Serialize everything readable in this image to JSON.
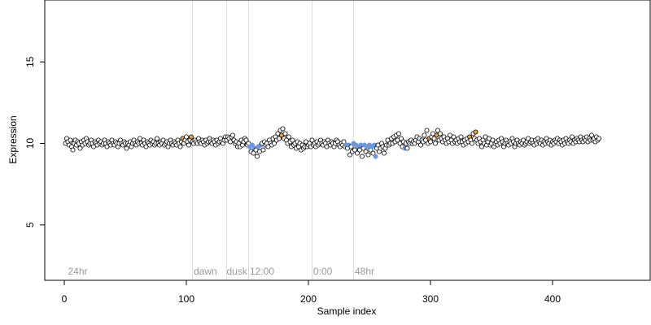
{
  "chart_data": {
    "type": "scatter",
    "xlabel": "Sample index",
    "ylabel": "Expression",
    "xlim": [
      -16,
      480
    ],
    "ylim": [
      1.6,
      18.8
    ],
    "x_ticks": [
      0,
      100,
      200,
      300,
      400
    ],
    "y_ticks": [
      5,
      10,
      15
    ],
    "grid": false,
    "colors": {
      "default": "#ffffff",
      "high": "#f0a040",
      "low": "#6a98e0",
      "vline": "#dddddd",
      "annot": "#9a9a9a"
    },
    "vlines": [
      105,
      133,
      151,
      203,
      237
    ],
    "annotations": [
      {
        "x": 3,
        "label": "24hr"
      },
      {
        "x": 106,
        "label": "dawn"
      },
      {
        "x": 133,
        "label": "dusk"
      },
      {
        "x": 152,
        "label": "12:00"
      },
      {
        "x": 204,
        "label": "0:00"
      },
      {
        "x": 238,
        "label": "48hr"
      }
    ],
    "points": [
      [
        1,
        10.0
      ],
      [
        2,
        10.3
      ],
      [
        3,
        10.1
      ],
      [
        4,
        9.9
      ],
      [
        5,
        10.2
      ],
      [
        6,
        9.8
      ],
      [
        7,
        9.6
      ],
      [
        8,
        10.0
      ],
      [
        9,
        10.2
      ],
      [
        10,
        9.9
      ],
      [
        11,
        10.1
      ],
      [
        12,
        10.0
      ],
      [
        13,
        9.7
      ],
      [
        14,
        10.1
      ],
      [
        15,
        9.9
      ],
      [
        16,
        10.2
      ],
      [
        17,
        10.0
      ],
      [
        18,
        10.3
      ],
      [
        19,
        10.1
      ],
      [
        20,
        9.9
      ],
      [
        21,
        10.0
      ],
      [
        22,
        10.2
      ],
      [
        23,
        10.0
      ],
      [
        24,
        9.8
      ],
      [
        25,
        10.1
      ],
      [
        26,
        10.0
      ],
      [
        27,
        9.9
      ],
      [
        28,
        10.2
      ],
      [
        29,
        10.0
      ],
      [
        30,
        10.1
      ],
      [
        31,
        9.9
      ],
      [
        32,
        10.0
      ],
      [
        33,
        10.2
      ],
      [
        34,
        10.0
      ],
      [
        35,
        9.8
      ],
      [
        36,
        10.1
      ],
      [
        37,
        10.0
      ],
      [
        38,
        9.9
      ],
      [
        39,
        10.2
      ],
      [
        40,
        10.0
      ],
      [
        41,
        9.9
      ],
      [
        42,
        10.1
      ],
      [
        43,
        10.0
      ],
      [
        44,
        9.8
      ],
      [
        45,
        10.0
      ],
      [
        46,
        10.2
      ],
      [
        47,
        10.0
      ],
      [
        48,
        9.9
      ],
      [
        49,
        10.1
      ],
      [
        50,
        10.0
      ],
      [
        51,
        9.7
      ],
      [
        52,
        10.0
      ],
      [
        53,
        9.9
      ],
      [
        54,
        10.1
      ],
      [
        55,
        9.8
      ],
      [
        56,
        10.0
      ],
      [
        57,
        10.2
      ],
      [
        58,
        10.0
      ],
      [
        59,
        9.9
      ],
      [
        60,
        10.1
      ],
      [
        61,
        10.0
      ],
      [
        62,
        10.3
      ],
      [
        63,
        10.0
      ],
      [
        64,
        9.9
      ],
      [
        65,
        10.2
      ],
      [
        66,
        10.0
      ],
      [
        67,
        9.8
      ],
      [
        68,
        10.1
      ],
      [
        69,
        10.0
      ],
      [
        70,
        9.9
      ],
      [
        71,
        10.2
      ],
      [
        72,
        10.0
      ],
      [
        73,
        10.1
      ],
      [
        74,
        9.9
      ],
      [
        75,
        10.0
      ],
      [
        76,
        10.3
      ],
      [
        77,
        10.0
      ],
      [
        78,
        9.9
      ],
      [
        79,
        10.1
      ],
      [
        80,
        10.0
      ],
      [
        81,
        10.2
      ],
      [
        82,
        9.9
      ],
      [
        83,
        10.0
      ],
      [
        84,
        10.1
      ],
      [
        85,
        9.8
      ],
      [
        86,
        10.0
      ],
      [
        87,
        10.2
      ],
      [
        88,
        10.0
      ],
      [
        89,
        9.9
      ],
      [
        90,
        10.1
      ],
      [
        91,
        10.0
      ],
      [
        92,
        9.9
      ],
      [
        93,
        10.2
      ],
      [
        94,
        10.0
      ],
      [
        95,
        9.8
      ],
      [
        96,
        10.1
      ],
      [
        97,
        10.3,
        "h"
      ],
      [
        98,
        10.0
      ],
      [
        99,
        10.2
      ],
      [
        100,
        10.4
      ],
      [
        101,
        10.1
      ],
      [
        102,
        9.9
      ],
      [
        103,
        10.2
      ],
      [
        104,
        10.4,
        "h"
      ],
      [
        105,
        10.1
      ],
      [
        106,
        10.0
      ],
      [
        107,
        10.2
      ],
      [
        108,
        10.1
      ],
      [
        109,
        10.0
      ],
      [
        110,
        10.3
      ],
      [
        111,
        10.1
      ],
      [
        112,
        10.0
      ],
      [
        113,
        10.2
      ],
      [
        114,
        10.1
      ],
      [
        115,
        9.9
      ],
      [
        116,
        10.2
      ],
      [
        117,
        10.0
      ],
      [
        118,
        10.1
      ],
      [
        119,
        10.3
      ],
      [
        120,
        10.1
      ],
      [
        121,
        10.0
      ],
      [
        122,
        10.2
      ],
      [
        123,
        10.1
      ],
      [
        124,
        9.9
      ],
      [
        125,
        10.2
      ],
      [
        126,
        10.0
      ],
      [
        127,
        10.1
      ],
      [
        128,
        10.3
      ],
      [
        129,
        10.1
      ],
      [
        130,
        10.0
      ],
      [
        131,
        10.2
      ],
      [
        132,
        10.4
      ],
      [
        133,
        10.2
      ],
      [
        134,
        10.4
      ],
      [
        135,
        10.3
      ],
      [
        136,
        10.1
      ],
      [
        137,
        10.4
      ],
      [
        138,
        10.5
      ],
      [
        139,
        10.2
      ],
      [
        140,
        10.0
      ],
      [
        141,
        10.1
      ],
      [
        142,
        9.8
      ],
      [
        143,
        10.0
      ],
      [
        144,
        9.8
      ],
      [
        145,
        10.2
      ],
      [
        146,
        9.9
      ],
      [
        147,
        10.1
      ],
      [
        148,
        10.3
      ],
      [
        149,
        10.2
      ],
      [
        150,
        9.9
      ],
      [
        151,
        10.0
      ],
      [
        152,
        9.8,
        "l"
      ],
      [
        153,
        9.5
      ],
      [
        154,
        9.9,
        "l"
      ],
      [
        155,
        9.4
      ],
      [
        156,
        9.7,
        "l"
      ],
      [
        157,
        9.6
      ],
      [
        158,
        9.2
      ],
      [
        159,
        9.8,
        "l"
      ],
      [
        160,
        9.5
      ],
      [
        161,
        9.9,
        "l"
      ],
      [
        162,
        10.0
      ],
      [
        163,
        9.6
      ],
      [
        164,
        10.1
      ],
      [
        165,
        9.9
      ],
      [
        166,
        10.0
      ],
      [
        167,
        9.8
      ],
      [
        168,
        10.2
      ],
      [
        169,
        10.0
      ],
      [
        170,
        9.9
      ],
      [
        171,
        10.3
      ],
      [
        172,
        10.0
      ],
      [
        173,
        10.4
      ],
      [
        174,
        10.2
      ],
      [
        175,
        10.6
      ],
      [
        176,
        10.3
      ],
      [
        177,
        10.8
      ],
      [
        178,
        10.5,
        "h"
      ],
      [
        179,
        10.9
      ],
      [
        180,
        10.3
      ],
      [
        181,
        10.6
      ],
      [
        182,
        10.2
      ],
      [
        183,
        10.0
      ],
      [
        184,
        10.4
      ],
      [
        185,
        10.1
      ],
      [
        186,
        9.8
      ],
      [
        187,
        10.2
      ],
      [
        188,
        9.9
      ],
      [
        189,
        10.0
      ],
      [
        190,
        9.7
      ],
      [
        191,
        10.1
      ],
      [
        192,
        9.8
      ],
      [
        193,
        10.0
      ],
      [
        194,
        9.6
      ],
      [
        195,
        9.9
      ],
      [
        196,
        9.7
      ],
      [
        197,
        9.8
      ],
      [
        198,
        10.1
      ],
      [
        199,
        9.8
      ],
      [
        200,
        9.9
      ],
      [
        201,
        10.0
      ],
      [
        202,
        9.8
      ],
      [
        203,
        10.2
      ],
      [
        204,
        9.9
      ],
      [
        205,
        10.0
      ],
      [
        206,
        9.8
      ],
      [
        207,
        10.1
      ],
      [
        208,
        9.9
      ],
      [
        209,
        10.0
      ],
      [
        210,
        10.2
      ],
      [
        211,
        10.0
      ],
      [
        212,
        9.9
      ],
      [
        213,
        10.1
      ],
      [
        214,
        10.0
      ],
      [
        215,
        9.8
      ],
      [
        216,
        10.2
      ],
      [
        217,
        10.0
      ],
      [
        218,
        9.9
      ],
      [
        219,
        10.1
      ],
      [
        220,
        10.0
      ],
      [
        221,
        9.8
      ],
      [
        222,
        10.0
      ],
      [
        223,
        10.2
      ],
      [
        224,
        10.1
      ],
      [
        225,
        9.9
      ],
      [
        226,
        9.8
      ],
      [
        227,
        10.0
      ],
      [
        228,
        9.9
      ],
      [
        229,
        10.1
      ],
      [
        230,
        9.8
      ],
      [
        231,
        9.9,
        "l"
      ],
      [
        232,
        9.7
      ],
      [
        233,
        9.9,
        "l"
      ],
      [
        234,
        9.3
      ],
      [
        235,
        9.8
      ],
      [
        236,
        9.5
      ],
      [
        237,
        10.0,
        "l"
      ],
      [
        238,
        9.6
      ],
      [
        239,
        9.9,
        "l"
      ],
      [
        240,
        9.4
      ],
      [
        241,
        9.8,
        "l"
      ],
      [
        242,
        9.6
      ],
      [
        243,
        9.9,
        "l"
      ],
      [
        244,
        9.2
      ],
      [
        245,
        9.7
      ],
      [
        246,
        9.9,
        "l"
      ],
      [
        247,
        9.5
      ],
      [
        248,
        9.8,
        "l"
      ],
      [
        249,
        9.3
      ],
      [
        250,
        9.9,
        "l"
      ],
      [
        251,
        9.6
      ],
      [
        252,
        9.8,
        "l"
      ],
      [
        253,
        9.4
      ],
      [
        254,
        9.9,
        "l"
      ],
      [
        255,
        9.2,
        "l"
      ],
      [
        256,
        9.7
      ],
      [
        257,
        9.9
      ],
      [
        258,
        9.5
      ],
      [
        259,
        9.7
      ],
      [
        260,
        10.0
      ],
      [
        261,
        9.8
      ],
      [
        262,
        9.4
      ],
      [
        263,
        9.7
      ],
      [
        264,
        9.9
      ],
      [
        265,
        10.2
      ],
      [
        266,
        9.9
      ],
      [
        267,
        10.0
      ],
      [
        268,
        10.3
      ],
      [
        269,
        10.0
      ],
      [
        270,
        10.4
      ],
      [
        271,
        10.1
      ],
      [
        272,
        10.5
      ],
      [
        273,
        10.2
      ],
      [
        274,
        10.6
      ],
      [
        275,
        10.0
      ],
      [
        276,
        10.3
      ],
      [
        277,
        9.8
      ],
      [
        278,
        10.1
      ],
      [
        279,
        9.7,
        "l"
      ],
      [
        280,
        10.0
      ],
      [
        281,
        9.7
      ],
      [
        282,
        10.1
      ],
      [
        283,
        10.0
      ],
      [
        284,
        10.2
      ],
      [
        285,
        10.0
      ],
      [
        286,
        10.1
      ],
      [
        287,
        10.0
      ],
      [
        288,
        10.2
      ],
      [
        289,
        10.4
      ],
      [
        290,
        10.1
      ],
      [
        291,
        10.3
      ],
      [
        292,
        9.9
      ],
      [
        293,
        10.2
      ],
      [
        294,
        10.1
      ],
      [
        295,
        10.5
      ],
      [
        296,
        10.2
      ],
      [
        297,
        10.8
      ],
      [
        298,
        10.0
      ],
      [
        299,
        10.3,
        "h"
      ],
      [
        300,
        10.1
      ],
      [
        301,
        10.4
      ],
      [
        302,
        10.6
      ],
      [
        303,
        10.3
      ],
      [
        304,
        10.0
      ],
      [
        305,
        10.5,
        "h"
      ],
      [
        306,
        10.8
      ],
      [
        307,
        10.2
      ],
      [
        308,
        10.6
      ],
      [
        309,
        10.3
      ],
      [
        310,
        10.1
      ],
      [
        311,
        10.4
      ],
      [
        312,
        10.2
      ],
      [
        313,
        10.0
      ],
      [
        314,
        10.3
      ],
      [
        315,
        10.1
      ],
      [
        316,
        10.5
      ],
      [
        317,
        10.2
      ],
      [
        318,
        10.0
      ],
      [
        319,
        10.4
      ],
      [
        320,
        10.1
      ],
      [
        321,
        10.2
      ],
      [
        322,
        10.0
      ],
      [
        323,
        10.3
      ],
      [
        324,
        10.1
      ],
      [
        325,
        10.4
      ],
      [
        326,
        10.1
      ],
      [
        327,
        9.9
      ],
      [
        328,
        10.2
      ],
      [
        329,
        10.0
      ],
      [
        330,
        10.3
      ],
      [
        331,
        10.1
      ],
      [
        332,
        10.4,
        "h"
      ],
      [
        333,
        10.2
      ],
      [
        334,
        10.0
      ],
      [
        335,
        10.6
      ],
      [
        336,
        10.3
      ],
      [
        337,
        10.7,
        "h"
      ],
      [
        338,
        10.2
      ],
      [
        339,
        10.0
      ],
      [
        340,
        10.3
      ],
      [
        341,
        10.1
      ],
      [
        342,
        9.8
      ],
      [
        343,
        10.2
      ],
      [
        344,
        10.0
      ],
      [
        345,
        10.4
      ],
      [
        346,
        9.9
      ],
      [
        347,
        10.1
      ],
      [
        348,
        10.3
      ],
      [
        349,
        9.9
      ],
      [
        350,
        10.0
      ],
      [
        351,
        10.2
      ],
      [
        352,
        9.8
      ],
      [
        353,
        10.0
      ],
      [
        354,
        10.1
      ],
      [
        355,
        9.9
      ],
      [
        356,
        10.2
      ],
      [
        357,
        10.0
      ],
      [
        358,
        10.3
      ],
      [
        359,
        10.1
      ],
      [
        360,
        9.8
      ],
      [
        361,
        10.0
      ],
      [
        362,
        10.2
      ],
      [
        363,
        10.0
      ],
      [
        364,
        9.9
      ],
      [
        365,
        10.1
      ],
      [
        366,
        10.0
      ],
      [
        367,
        10.3
      ],
      [
        368,
        10.1
      ],
      [
        369,
        9.8
      ],
      [
        370,
        10.0
      ],
      [
        371,
        10.2
      ],
      [
        372,
        10.0
      ],
      [
        373,
        9.9
      ],
      [
        374,
        10.1
      ],
      [
        375,
        10.0
      ],
      [
        376,
        10.2
      ],
      [
        377,
        9.9
      ],
      [
        378,
        10.0
      ],
      [
        379,
        10.1
      ],
      [
        380,
        10.3
      ],
      [
        381,
        10.0
      ],
      [
        382,
        10.1
      ],
      [
        383,
        10.2
      ],
      [
        384,
        10.0
      ],
      [
        385,
        9.9
      ],
      [
        386,
        10.2
      ],
      [
        387,
        10.0
      ],
      [
        388,
        10.3
      ],
      [
        389,
        10.1
      ],
      [
        390,
        10.0
      ],
      [
        391,
        10.2
      ],
      [
        392,
        9.9
      ],
      [
        393,
        10.1
      ],
      [
        394,
        10.0
      ],
      [
        395,
        10.3
      ],
      [
        396,
        10.1
      ],
      [
        397,
        10.0
      ],
      [
        398,
        10.2
      ],
      [
        399,
        9.9
      ],
      [
        400,
        10.1
      ],
      [
        401,
        10.0
      ],
      [
        402,
        10.2
      ],
      [
        403,
        10.1
      ],
      [
        404,
        10.3
      ],
      [
        405,
        10.0
      ],
      [
        406,
        10.2
      ],
      [
        407,
        10.1
      ],
      [
        408,
        9.9
      ],
      [
        409,
        10.2
      ],
      [
        410,
        10.0
      ],
      [
        411,
        10.3
      ],
      [
        412,
        10.1
      ],
      [
        413,
        10.0
      ],
      [
        414,
        10.2
      ],
      [
        415,
        10.1
      ],
      [
        416,
        10.4
      ],
      [
        417,
        10.0
      ],
      [
        418,
        10.2
      ],
      [
        419,
        10.1
      ],
      [
        420,
        10.3
      ],
      [
        421,
        10.2
      ],
      [
        422,
        10.1
      ],
      [
        423,
        10.4
      ],
      [
        424,
        10.2
      ],
      [
        425,
        10.1
      ],
      [
        426,
        10.3
      ],
      [
        427,
        10.2
      ],
      [
        428,
        10.4
      ],
      [
        429,
        10.1
      ],
      [
        430,
        10.3
      ],
      [
        431,
        10.2
      ],
      [
        432,
        10.5
      ],
      [
        433,
        10.2
      ],
      [
        434,
        10.3
      ],
      [
        435,
        10.1
      ],
      [
        436,
        10.4
      ],
      [
        437,
        10.2
      ],
      [
        438,
        10.3
      ]
    ]
  }
}
